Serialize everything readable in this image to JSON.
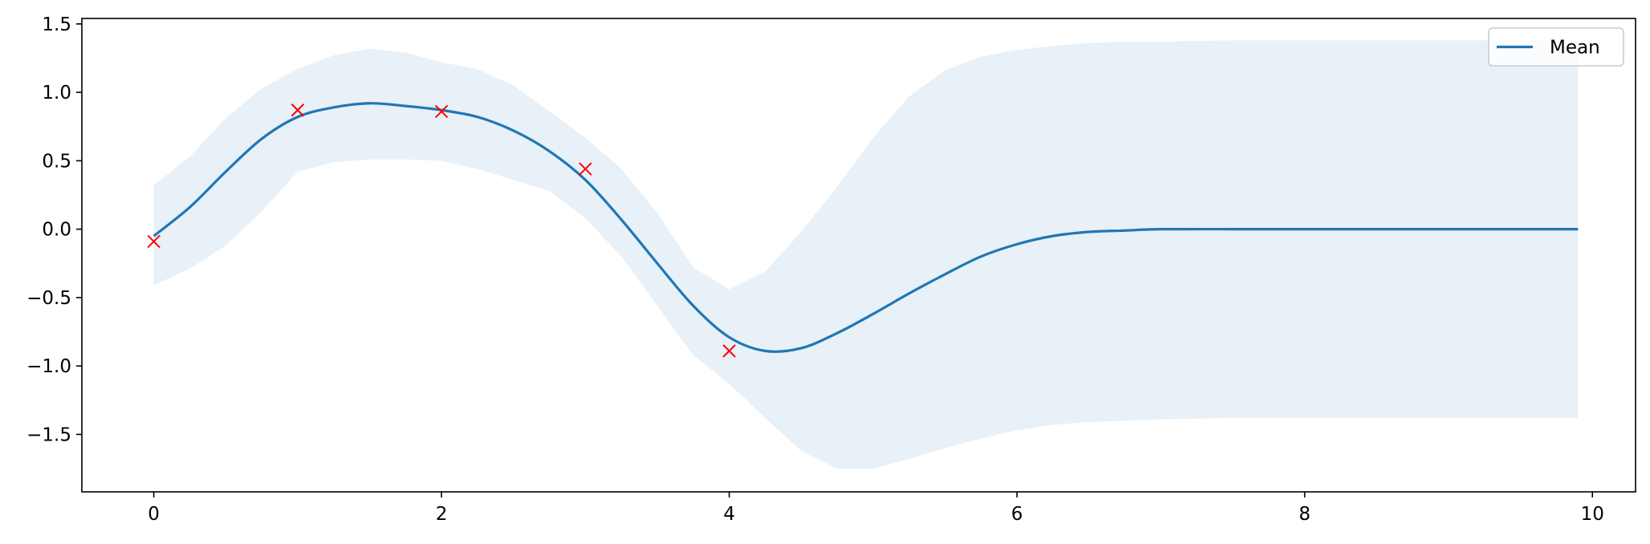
{
  "chart_data": {
    "type": "line",
    "title": "",
    "xlabel": "",
    "ylabel": "",
    "xlim": [
      -0.5,
      10.3
    ],
    "ylim": [
      -1.92,
      1.54
    ],
    "xticks": [
      0,
      2,
      4,
      6,
      8,
      10
    ],
    "yticks": [
      -1.5,
      -1.0,
      -0.5,
      0.0,
      0.5,
      1.0,
      1.5
    ],
    "xtick_labels": [
      "0",
      "2",
      "4",
      "6",
      "8",
      "10"
    ],
    "ytick_labels": [
      "−1.5",
      "−1.0",
      "−0.5",
      "0.0",
      "0.5",
      "1.0",
      "1.5"
    ],
    "grid": false,
    "legend": {
      "placement": "top-right",
      "entries": [
        {
          "label": "Mean",
          "color": "#1f77b4"
        }
      ]
    },
    "colors": {
      "mean_line": "#1f77b4",
      "band": "#e8f0f8",
      "observations": "#ff0000"
    },
    "mean": {
      "name": "Mean",
      "x": [
        0,
        0.25,
        0.5,
        0.75,
        1.0,
        1.25,
        1.5,
        1.75,
        2.0,
        2.25,
        2.5,
        2.75,
        3.0,
        3.25,
        3.5,
        3.75,
        4.0,
        4.25,
        4.5,
        4.75,
        5.0,
        5.25,
        5.5,
        5.75,
        6.0,
        6.25,
        6.5,
        6.75,
        7.0,
        7.5,
        8.0,
        8.5,
        9.0,
        9.5,
        9.9
      ],
      "y": [
        -0.05,
        0.16,
        0.42,
        0.66,
        0.82,
        0.89,
        0.92,
        0.9,
        0.87,
        0.82,
        0.72,
        0.57,
        0.36,
        0.07,
        -0.25,
        -0.56,
        -0.79,
        -0.89,
        -0.87,
        -0.76,
        -0.62,
        -0.47,
        -0.33,
        -0.2,
        -0.11,
        -0.05,
        -0.02,
        -0.01,
        0.0,
        0.0,
        0.0,
        0.0,
        0.0,
        0.0,
        0.0
      ]
    },
    "band": {
      "x": [
        0,
        0.25,
        0.5,
        0.75,
        1.0,
        1.25,
        1.5,
        1.75,
        2.0,
        2.25,
        2.5,
        2.75,
        3.0,
        3.25,
        3.5,
        3.75,
        4.0,
        4.25,
        4.5,
        4.75,
        5.0,
        5.25,
        5.5,
        5.75,
        6.0,
        6.25,
        6.5,
        6.75,
        7.0,
        7.5,
        8.0,
        8.5,
        9.0,
        9.5,
        9.9
      ],
      "upper": [
        0.32,
        0.53,
        0.81,
        1.03,
        1.17,
        1.27,
        1.32,
        1.29,
        1.22,
        1.17,
        1.05,
        0.86,
        0.67,
        0.44,
        0.12,
        -0.28,
        -0.44,
        -0.31,
        -0.02,
        0.31,
        0.67,
        0.97,
        1.16,
        1.26,
        1.31,
        1.34,
        1.36,
        1.37,
        1.37,
        1.38,
        1.38,
        1.38,
        1.38,
        1.38,
        1.38
      ],
      "lower": [
        -0.41,
        -0.29,
        -0.12,
        0.13,
        0.42,
        0.49,
        0.51,
        0.51,
        0.5,
        0.44,
        0.36,
        0.28,
        0.08,
        -0.2,
        -0.56,
        -0.92,
        -1.13,
        -1.38,
        -1.62,
        -1.75,
        -1.75,
        -1.68,
        -1.6,
        -1.53,
        -1.47,
        -1.43,
        -1.41,
        -1.4,
        -1.39,
        -1.38,
        -1.38,
        -1.38,
        -1.38,
        -1.38,
        -1.38
      ]
    },
    "observations": {
      "x": [
        0,
        1,
        2,
        3,
        4
      ],
      "y": [
        -0.09,
        0.87,
        0.86,
        0.44,
        -0.89
      ]
    }
  }
}
